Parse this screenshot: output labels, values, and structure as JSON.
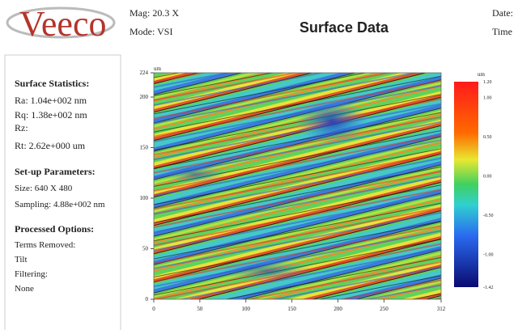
{
  "header": {
    "logo": "Veeco",
    "mag": "Mag:  20.3 X",
    "mode": "Mode:  VSI",
    "title": "Surface Data",
    "date": "Date:",
    "time": "Time"
  },
  "statistics": {
    "heading": "Surface Statistics:",
    "lines": [
      "Ra:  1.04e+002 nm",
      "Rq:  1.38e+002 nm",
      "Rz:",
      "Rt:  2.62e+000 um"
    ]
  },
  "setup": {
    "heading": "Set-up Parameters:",
    "lines": [
      "Size: 640 X 480",
      "Sampling:  4.88e+002 nm"
    ]
  },
  "processed": {
    "heading": "Processed Options:",
    "lines": [
      "Terms Removed:",
      "Tilt",
      "Filtering:",
      "None"
    ]
  },
  "plot": {
    "y_unit": "um",
    "yticks": [
      "0",
      "50",
      "100",
      "150",
      "200",
      "224"
    ],
    "xticks": [
      "0",
      "50",
      "100",
      "150",
      "200",
      "250",
      "312"
    ],
    "colorbar_unit": "um",
    "colorbar_ticks": [
      "1.20",
      "1.00",
      "0.50",
      "0.00",
      "-0.50",
      "-1.00",
      "-1.42"
    ]
  }
}
